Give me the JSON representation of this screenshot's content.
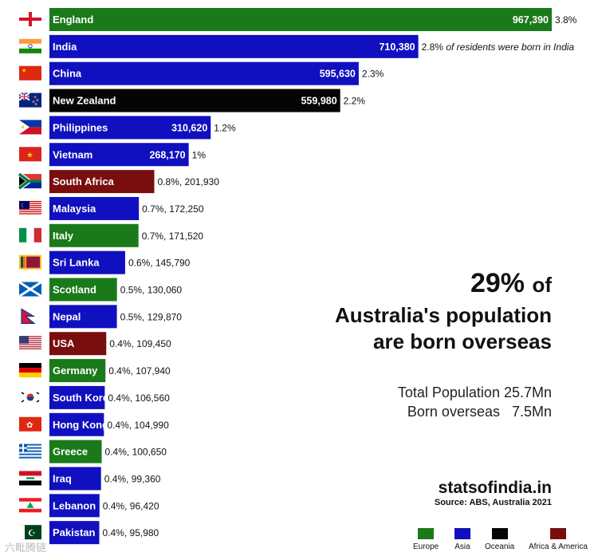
{
  "chart_data": {
    "type": "bar",
    "orientation": "horizontal",
    "categories": [
      "England",
      "India",
      "China",
      "New Zealand",
      "Philippines",
      "Vietnam",
      "South Africa",
      "Malaysia",
      "Italy",
      "Sri Lanka",
      "Scotland",
      "Nepal",
      "USA",
      "Germany",
      "South Korea",
      "Hong Kong",
      "Greece",
      "Iraq",
      "Lebanon",
      "Pakistan"
    ],
    "values": [
      967390,
      710380,
      595630,
      559980,
      310620,
      268170,
      201930,
      172250,
      171520,
      145790,
      130060,
      129870,
      109450,
      107940,
      106560,
      104990,
      100650,
      99360,
      96420,
      95980
    ],
    "notes": [
      "3.8%",
      "2.8% of residents were born in India",
      "2.3%",
      "2.2%",
      "1.2%",
      "1%",
      "0.8%, 201,930",
      "0.7%, 172,250",
      "0.7%, 171,520",
      "0.6%, 145,790",
      "0.5%, 130,060",
      "0.5%, 129,870",
      "0.4%, 109,450",
      "0.4%, 107,940",
      "0.4%, 106,560",
      "0.4%, 104,990",
      "0.4%, 100,650",
      "0.4%, 99,360",
      "0.4%, 96,420",
      "0.4%, 95,980"
    ],
    "value_labels": [
      "967,390",
      "710,380",
      "595,630",
      "559,980",
      "310,620",
      "268,170",
      "",
      "",
      "",
      "",
      "",
      "",
      "",
      "",
      "",
      "",
      "",
      "",
      "",
      ""
    ],
    "regions": [
      "Europe",
      "Asia",
      "Asia",
      "Oceania",
      "Asia",
      "Asia",
      "Africa & America",
      "Asia",
      "Europe",
      "Asia",
      "Europe",
      "Asia",
      "Africa & America",
      "Europe",
      "Asia",
      "Asia",
      "Europe",
      "Asia",
      "Asia",
      "Asia"
    ],
    "flags": [
      "england-flag",
      "india-flag",
      "china-flag",
      "new-zealand-flag",
      "philippines-flag",
      "vietnam-flag",
      "south-africa-flag",
      "malaysia-flag",
      "italy-flag",
      "sri-lanka-flag",
      "scotland-flag",
      "nepal-flag",
      "usa-flag",
      "germany-flag",
      "south-korea-flag",
      "hong-kong-flag",
      "greece-flag",
      "iraq-flag",
      "lebanon-flag",
      "pakistan-flag"
    ],
    "region_colors": {
      "Europe": "#1a7a1a",
      "Asia": "#1010c0",
      "Oceania": "#050505",
      "Africa & America": "#7a0e0e"
    },
    "legend": [
      "Europe",
      "Asia",
      "Oceania",
      "Africa & America"
    ],
    "legend_position": "bottom-right",
    "grid": false
  },
  "headline": {
    "pct": "29%",
    "of": "of",
    "line2": "Australia's population",
    "line3": "are born overseas"
  },
  "stats": {
    "total": "Total Population 25.7Mn",
    "overseas": "Born overseas   7.5Mn"
  },
  "brand": "statsofindia.in",
  "source": "Source: ABS, Australia 2021",
  "watermark": "六毗腾链"
}
